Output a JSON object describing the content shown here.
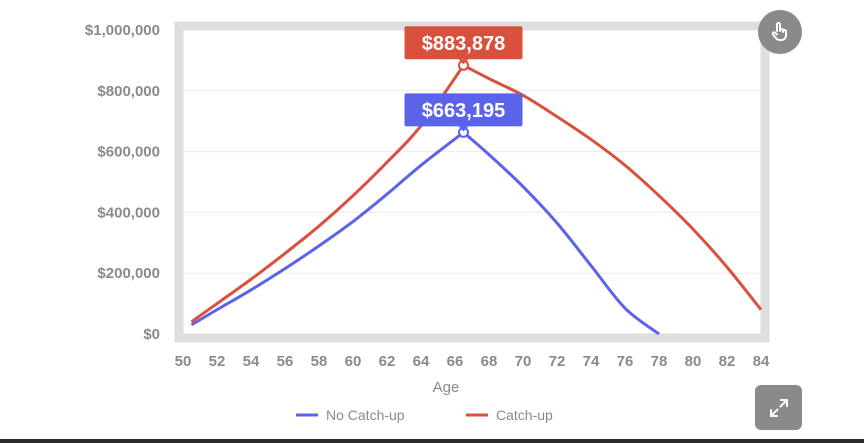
{
  "chart_data": {
    "type": "line",
    "xlabel": "Age",
    "ylabel": "",
    "xlim": [
      50,
      84
    ],
    "ylim": [
      0,
      1000000
    ],
    "x_ticks": [
      "50",
      "52",
      "54",
      "56",
      "58",
      "60",
      "62",
      "64",
      "66",
      "68",
      "70",
      "72",
      "74",
      "76",
      "78",
      "80",
      "82",
      "84"
    ],
    "y_ticks": [
      "$0",
      "$200,000",
      "$400,000",
      "$600,000",
      "$800,000",
      "$1,000,000"
    ],
    "grid": true,
    "legend": "bottom",
    "series": [
      {
        "name": "No Catch-up",
        "color": "#5b63e8",
        "x": [
          50.5,
          52,
          54,
          56,
          58,
          60,
          62,
          64,
          66.5,
          68,
          70,
          72,
          74,
          76,
          78
        ],
        "y": [
          30000,
          80000,
          145000,
          215000,
          290000,
          370000,
          460000,
          555000,
          663195,
          590000,
          485000,
          365000,
          225000,
          85000,
          0
        ]
      },
      {
        "name": "Catch-up",
        "color": "#d9503c",
        "x": [
          50.5,
          52,
          54,
          56,
          58,
          60,
          62,
          64,
          66.5,
          68,
          70,
          72,
          74,
          76,
          78,
          80,
          82,
          84
        ],
        "y": [
          40000,
          100000,
          180000,
          265000,
          355000,
          455000,
          565000,
          685000,
          883878,
          840000,
          785000,
          715000,
          640000,
          555000,
          455000,
          345000,
          220000,
          80000
        ]
      }
    ],
    "annotations": [
      {
        "series": "Catch-up",
        "x": 66.5,
        "y": 883878,
        "label": "$883,878",
        "color": "#d9503c"
      },
      {
        "series": "No Catch-up",
        "x": 66.5,
        "y": 663195,
        "label": "$663,195",
        "color": "#5b63e8"
      }
    ]
  },
  "controls": {
    "hand_icon": "hand-pointer-icon",
    "expand_icon": "expand-arrows-icon"
  }
}
